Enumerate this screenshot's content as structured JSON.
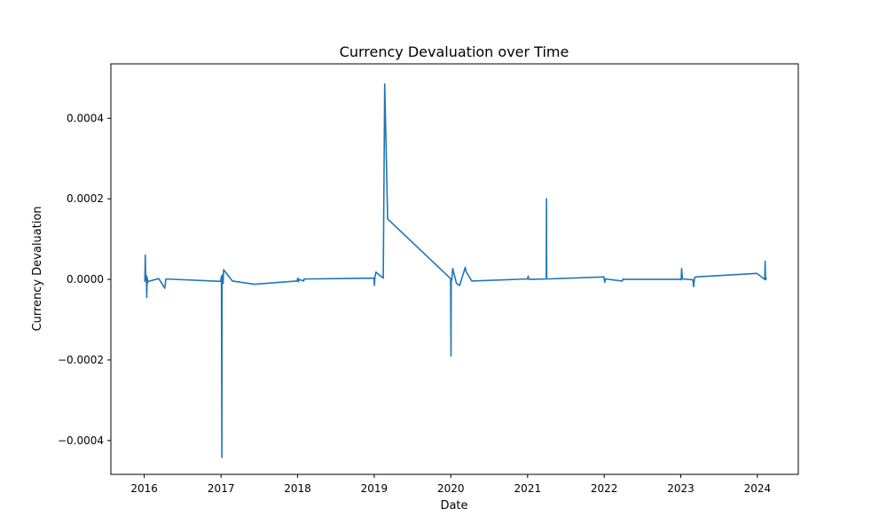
{
  "chart_data": {
    "type": "line",
    "title": "Currency Devaluation over Time",
    "xlabel": "Date",
    "ylabel": "Currency Devaluation",
    "x_ticks": [
      "2016",
      "2017",
      "2018",
      "2019",
      "2020",
      "2021",
      "2022",
      "2023",
      "2024"
    ],
    "y_ticks": [
      "−0.0004",
      "−0.0002",
      "0.0000",
      "0.0002",
      "0.0004"
    ],
    "xlim": [
      "2015-07-26",
      "2024-07-14"
    ],
    "ylim": [
      -0.000484,
      0.000535
    ],
    "grid": false,
    "colors": {
      "series": "#1f77b4"
    },
    "series": [
      {
        "x": [
          "2016-01-04",
          "2016-01-06",
          "2016-01-08",
          "2016-01-11",
          "2016-01-13",
          "2016-01-15",
          "2016-01-18",
          "2016-01-20",
          "2016-03-10",
          "2016-04-08",
          "2016-04-13",
          "2016-12-30",
          "2017-01-03",
          "2017-01-05",
          "2017-01-06",
          "2017-01-09",
          "2017-01-11",
          "2017-01-13",
          "2017-02-24",
          "2017-06-09",
          "2017-12-29",
          "2018-01-02",
          "2018-01-04",
          "2018-01-05",
          "2018-01-09",
          "2018-01-12",
          "2018-01-30",
          "2018-02-01",
          "2018-02-23",
          "2018-12-31",
          "2019-01-02",
          "2019-01-04",
          "2019-01-07",
          "2019-01-09",
          "2019-02-13",
          "2019-02-20",
          "2019-02-27",
          "2019-03-06",
          "2019-12-31",
          "2020-01-02",
          "2020-01-03",
          "2020-01-06",
          "2020-01-10",
          "2020-01-28",
          "2020-02-12",
          "2020-03-10",
          "2020-03-13",
          "2020-04-10",
          "2020-12-31",
          "2021-01-04",
          "2021-01-06",
          "2021-01-08",
          "2021-01-20",
          "2021-03-31",
          "2021-04-01",
          "2021-04-02",
          "2021-04-05",
          "2021-12-31",
          "2022-01-04",
          "2022-01-07",
          "2022-03-28",
          "2022-04-01",
          "2022-04-04",
          "2022-12-30",
          "2023-01-03",
          "2023-01-05",
          "2023-01-09",
          "2023-02-28",
          "2023-03-03",
          "2023-03-08",
          "2023-03-15",
          "2023-12-29",
          "2024-02-05",
          "2024-02-07",
          "2024-02-09",
          "2024-02-12"
        ],
        "y": [
          -5e-06,
          6e-05,
          -2e-06,
          1e-05,
          -4.5e-05,
          5e-06,
          -8e-06,
          -5e-06,
          2e-06,
          -2.2e-05,
          1e-06,
          -5e-06,
          8e-06,
          -0.000442,
          5e-06,
          1.2e-05,
          -1e-05,
          2.4e-05,
          -4e-06,
          -1.2e-05,
          -4e-06,
          3e-06,
          -6e-06,
          1e-06,
          -2e-06,
          -1e-06,
          -4e-06,
          1e-06,
          1e-06,
          3e-06,
          -1.5e-05,
          5e-06,
          1.2e-05,
          1.8e-05,
          3e-06,
          0.000485,
          0.00032,
          0.00015,
          2e-06,
          -0.00019,
          -5e-06,
          0.0,
          2.7e-05,
          -1e-05,
          -1.5e-05,
          3e-05,
          2e-05,
          -4e-06,
          1e-06,
          8e-06,
          1e-06,
          0.0,
          0.0,
          1e-06,
          0.0002,
          2e-06,
          1e-06,
          6e-06,
          -7e-06,
          1e-06,
          -4e-06,
          1e-06,
          0.0,
          0.0,
          -1e-06,
          2.7e-05,
          1e-06,
          -1e-06,
          -1.8e-05,
          5e-06,
          6e-06,
          1.5e-05,
          0.0,
          4.5e-05,
          -1e-06,
          3e-06
        ]
      }
    ]
  }
}
